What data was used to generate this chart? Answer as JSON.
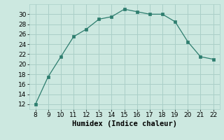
{
  "x": [
    8,
    9,
    10,
    11,
    12,
    13,
    14,
    15,
    16,
    17,
    18,
    19,
    20,
    21,
    22
  ],
  "y": [
    12,
    17.5,
    21.5,
    25.5,
    27,
    29,
    29.5,
    31,
    30.5,
    30,
    30,
    28.5,
    24.5,
    21.5,
    21
  ],
  "line_color": "#2d7d6e",
  "marker": "s",
  "marker_size": 2.5,
  "bg_color": "#cce8e0",
  "grid_color": "#aacfc8",
  "xlabel": "Humidex (Indice chaleur)",
  "xlim": [
    7.5,
    22.5
  ],
  "ylim": [
    11,
    32
  ],
  "yticks": [
    12,
    14,
    16,
    18,
    20,
    22,
    24,
    26,
    28,
    30
  ],
  "xticks": [
    8,
    9,
    10,
    11,
    12,
    13,
    14,
    15,
    16,
    17,
    18,
    19,
    20,
    21,
    22
  ],
  "tick_fontsize": 6.5,
  "xlabel_fontsize": 7.5
}
